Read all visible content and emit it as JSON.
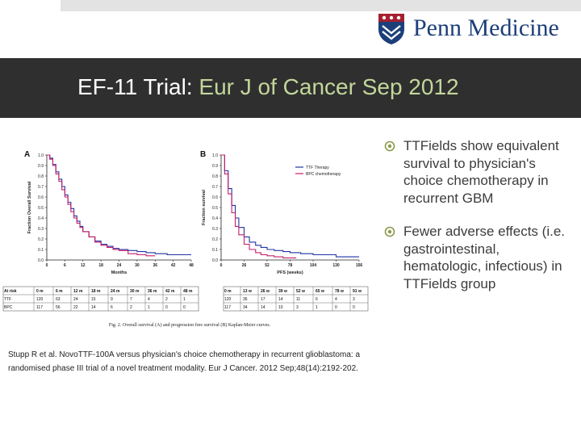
{
  "header": {
    "logo_text": "Penn Medicine",
    "title_main": "EF-11 Trial:",
    "title_accent": "Eur J of Cancer Sep 2012"
  },
  "bullets": [
    {
      "text": "TTFields show equivalent survival to physician's choice chemotherapy in recurrent GBM"
    },
    {
      "text": "Fewer adverse effects (i.e. gastrointestinal, hematologic, infectious) in TTFields group"
    }
  ],
  "citation": "Stupp R et al. NovoTTF-100A versus physician's choice chemotherapy in recurrent glioblastoma: a randomised phase III trial of a novel treatment modality. Eur J Cancer. 2012 Sep;48(14):2192-202.",
  "colors": {
    "ttf": "#1f33a3",
    "bpc": "#c61d6a",
    "band": "#2f2f2f",
    "accent": "#c3d69b",
    "logo": "#1c3f7a"
  },
  "chart_data": [
    {
      "type": "line",
      "panel_label": "A",
      "ylabel": "Fraction Overall Survival",
      "xlabel": "Months",
      "xlim": [
        0,
        48
      ],
      "ylim": [
        0,
        1
      ],
      "x_ticks": [
        0,
        6,
        12,
        18,
        24,
        30,
        36,
        42,
        48
      ],
      "y_ticks": [
        "0.0",
        "0.1",
        "0.2",
        "0.3",
        "0.4",
        "0.5",
        "0.6",
        "0.7",
        "0.8",
        "0.9",
        "1.0"
      ],
      "series": [
        {
          "key": "ttf",
          "x": [
            0,
            1,
            2,
            3,
            4,
            5,
            6,
            7,
            8,
            9,
            10,
            11,
            12,
            14,
            16,
            18,
            20,
            22,
            24,
            27,
            30,
            33,
            36,
            40,
            44,
            48
          ],
          "y": [
            1.0,
            0.97,
            0.91,
            0.84,
            0.77,
            0.7,
            0.62,
            0.55,
            0.49,
            0.42,
            0.37,
            0.32,
            0.27,
            0.22,
            0.18,
            0.15,
            0.13,
            0.11,
            0.1,
            0.09,
            0.08,
            0.07,
            0.06,
            0.05,
            0.05,
            0.05
          ]
        },
        {
          "key": "bpc",
          "x": [
            0,
            1,
            2,
            3,
            4,
            5,
            6,
            7,
            8,
            9,
            10,
            11,
            12,
            14,
            16,
            18,
            20,
            22,
            24,
            27,
            30,
            33,
            36
          ],
          "y": [
            1.0,
            0.96,
            0.9,
            0.82,
            0.75,
            0.67,
            0.6,
            0.53,
            0.46,
            0.4,
            0.35,
            0.31,
            0.27,
            0.22,
            0.17,
            0.14,
            0.12,
            0.1,
            0.09,
            0.06,
            0.05,
            0.04,
            0.04
          ]
        }
      ],
      "at_risk": {
        "header": [
          "At risk",
          "0 m",
          "6 m",
          "12 m",
          "18 m",
          "24 m",
          "30 m",
          "36 m",
          "42 m",
          "48 m"
        ],
        "rows": [
          [
            "TTF",
            "120",
            "63",
            "24",
            "15",
            "9",
            "7",
            "4",
            "2",
            "1"
          ],
          [
            "BPC",
            "117",
            "56",
            "22",
            "14",
            "6",
            "2",
            "1",
            "0",
            "0"
          ]
        ]
      }
    },
    {
      "type": "line",
      "panel_label": "B",
      "ylabel": "Fraction survival",
      "xlabel": "PFS (weeks)",
      "xlim": [
        0,
        156
      ],
      "ylim": [
        0,
        1
      ],
      "x_ticks": [
        0,
        26,
        52,
        78,
        104,
        130,
        156
      ],
      "y_ticks": [
        "0.0",
        "0.1",
        "0.2",
        "0.3",
        "0.4",
        "0.5",
        "0.6",
        "0.7",
        "0.8",
        "0.9",
        "1.0"
      ],
      "legend": [
        {
          "key": "ttf",
          "label": "TTF Therapy"
        },
        {
          "key": "bpc",
          "label": "BPC chemotherapy"
        }
      ],
      "series": [
        {
          "key": "ttf",
          "x": [
            0,
            4,
            8,
            12,
            16,
            20,
            26,
            32,
            39,
            45,
            52,
            60,
            70,
            78,
            90,
            104,
            116,
            126,
            130,
            140,
            148,
            156
          ],
          "y": [
            1.0,
            0.85,
            0.68,
            0.52,
            0.4,
            0.31,
            0.22,
            0.17,
            0.14,
            0.12,
            0.1,
            0.09,
            0.08,
            0.07,
            0.06,
            0.05,
            0.05,
            0.05,
            0.03,
            0.03,
            0.03,
            0.03
          ]
        },
        {
          "key": "bpc",
          "x": [
            0,
            4,
            8,
            12,
            16,
            20,
            26,
            32,
            39,
            45,
            52,
            60,
            70,
            78,
            85
          ],
          "y": [
            1.0,
            0.82,
            0.63,
            0.45,
            0.32,
            0.24,
            0.15,
            0.1,
            0.07,
            0.05,
            0.04,
            0.03,
            0.02,
            0.02,
            0.02
          ]
        }
      ],
      "at_risk": {
        "header": [
          "0 m",
          "13 w",
          "26 w",
          "39 w",
          "52 w",
          "65 w",
          "78 w",
          "91 w"
        ],
        "rows": [
          [
            "120",
            "36",
            "17",
            "14",
            "11",
            "6",
            "4",
            "3"
          ],
          [
            "117",
            "34",
            "14",
            "10",
            "3",
            "1",
            "0",
            "0"
          ]
        ]
      }
    }
  ],
  "figure_caption": "Fig. 2. Overall survival (A) and progression free survival (B) Kaplan-Meier curves."
}
